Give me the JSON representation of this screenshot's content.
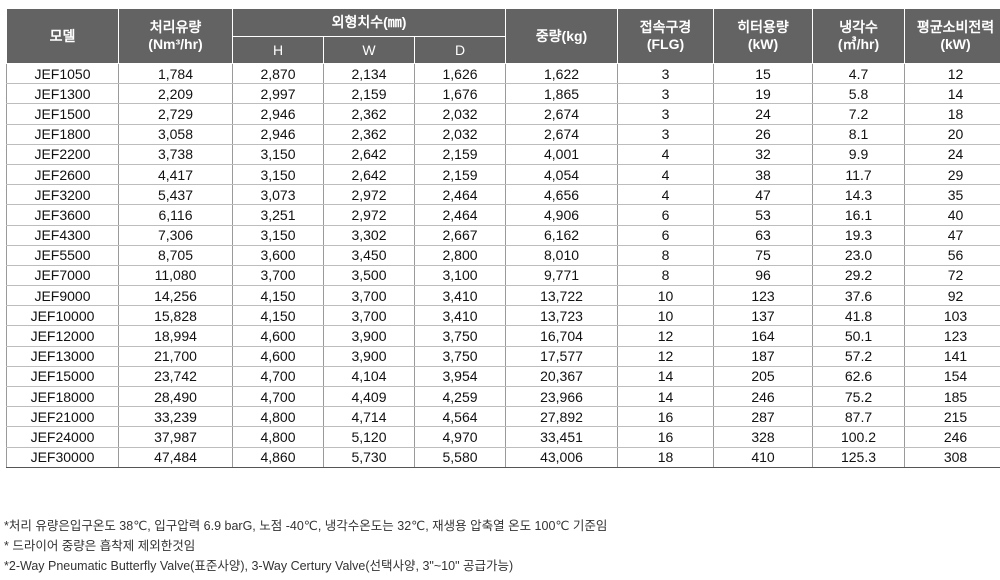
{
  "headers": {
    "model": "모델",
    "flow_l1": "처리유량",
    "flow_l2": "(Nm³/hr)",
    "dim": "외형치수(㎜)",
    "h": "H",
    "w": "W",
    "d": "D",
    "weight": "중량(kg)",
    "conn_l1": "접속구경",
    "conn_l2": "(FLG)",
    "heater_l1": "히터용량",
    "heater_l2": "(kW)",
    "cooling_l1": "냉각수",
    "cooling_l2": "(㎥/hr)",
    "power_l1": "평균소비전력",
    "power_l2": "(kW)"
  },
  "rows": [
    [
      "JEF1050",
      "1,784",
      "2,870",
      "2,134",
      "1,626",
      "1,622",
      "3",
      "15",
      "4.7",
      "12"
    ],
    [
      "JEF1300",
      "2,209",
      "2,997",
      "2,159",
      "1,676",
      "1,865",
      "3",
      "19",
      "5.8",
      "14"
    ],
    [
      "JEF1500",
      "2,729",
      "2,946",
      "2,362",
      "2,032",
      "2,674",
      "3",
      "24",
      "7.2",
      "18"
    ],
    [
      "JEF1800",
      "3,058",
      "2,946",
      "2,362",
      "2,032",
      "2,674",
      "3",
      "26",
      "8.1",
      "20"
    ],
    [
      "JEF2200",
      "3,738",
      "3,150",
      "2,642",
      "2,159",
      "4,001",
      "4",
      "32",
      "9.9",
      "24"
    ],
    [
      "JEF2600",
      "4,417",
      "3,150",
      "2,642",
      "2,159",
      "4,054",
      "4",
      "38",
      "11.7",
      "29"
    ],
    [
      "JEF3200",
      "5,437",
      "3,073",
      "2,972",
      "2,464",
      "4,656",
      "4",
      "47",
      "14.3",
      "35"
    ],
    [
      "JEF3600",
      "6,116",
      "3,251",
      "2,972",
      "2,464",
      "4,906",
      "6",
      "53",
      "16.1",
      "40"
    ],
    [
      "JEF4300",
      "7,306",
      "3,150",
      "3,302",
      "2,667",
      "6,162",
      "6",
      "63",
      "19.3",
      "47"
    ],
    [
      "JEF5500",
      "8,705",
      "3,600",
      "3,450",
      "2,800",
      "8,010",
      "8",
      "75",
      "23.0",
      "56"
    ],
    [
      "JEF7000",
      "11,080",
      "3,700",
      "3,500",
      "3,100",
      "9,771",
      "8",
      "96",
      "29.2",
      "72"
    ],
    [
      "JEF9000",
      "14,256",
      "4,150",
      "3,700",
      "3,410",
      "13,722",
      "10",
      "123",
      "37.6",
      "92"
    ],
    [
      "JEF10000",
      "15,828",
      "4,150",
      "3,700",
      "3,410",
      "13,723",
      "10",
      "137",
      "41.8",
      "103"
    ],
    [
      "JEF12000",
      "18,994",
      "4,600",
      "3,900",
      "3,750",
      "16,704",
      "12",
      "164",
      "50.1",
      "123"
    ],
    [
      "JEF13000",
      "21,700",
      "4,600",
      "3,900",
      "3,750",
      "17,577",
      "12",
      "187",
      "57.2",
      "141"
    ],
    [
      "JEF15000",
      "23,742",
      "4,700",
      "4,104",
      "3,954",
      "20,367",
      "14",
      "205",
      "62.6",
      "154"
    ],
    [
      "JEF18000",
      "28,490",
      "4,700",
      "4,409",
      "4,259",
      "23,966",
      "14",
      "246",
      "75.2",
      "185"
    ],
    [
      "JEF21000",
      "33,239",
      "4,800",
      "4,714",
      "4,564",
      "27,892",
      "16",
      "287",
      "87.7",
      "215"
    ],
    [
      "JEF24000",
      "37,987",
      "4,800",
      "5,120",
      "4,970",
      "33,451",
      "16",
      "328",
      "100.2",
      "246"
    ],
    [
      "JEF30000",
      "47,484",
      "4,860",
      "5,730",
      "5,580",
      "43,006",
      "18",
      "410",
      "125.3",
      "308"
    ]
  ],
  "notes": [
    "*처리 유량은입구온도 38℃, 입구압력 6.9 barG, 노점 -40℃, 냉각수온도는 32℃, 재생용 압축열 온도 100℃ 기준임",
    "* 드라이어 중량은 흡착제 제외한것임",
    "*2-Way Pneumatic Butterfly Valve(표준사양), 3-Way Certury Valve(선택사양, 3\"~10\" 공급가능)"
  ],
  "colors": {
    "header_bg": "#636363",
    "header_text": "#ffffff"
  }
}
